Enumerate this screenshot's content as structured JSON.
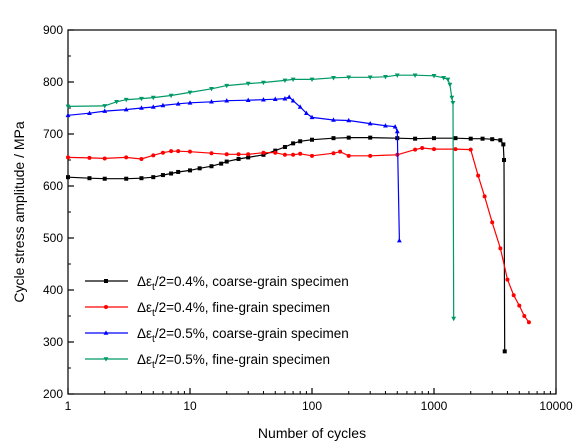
{
  "chart_data": {
    "type": "line",
    "xlabel": "Number of cycles",
    "ylabel": "Cycle stress amplitude / MPa",
    "x_scale": "log",
    "xlim": [
      1,
      10000
    ],
    "ylim": [
      200,
      900
    ],
    "x_ticks": [
      1,
      10,
      100,
      1000,
      10000
    ],
    "x_tick_labels": [
      "1",
      "10",
      "100",
      "1000",
      "10000"
    ],
    "y_ticks": [
      200,
      300,
      400,
      500,
      600,
      700,
      800,
      900
    ],
    "y_tick_labels": [
      "200",
      "300",
      "400",
      "500",
      "600",
      "700",
      "800",
      "900"
    ],
    "grid": false,
    "legend_position": "lower-left",
    "series": [
      {
        "legend_prefix": "Δε",
        "legend_sub": "t",
        "legend_suffix": "/2=0.4%, coarse-grain specimen",
        "color": "#000000",
        "marker": "square",
        "points": [
          [
            1,
            617
          ],
          [
            1.5,
            615
          ],
          [
            2,
            614
          ],
          [
            3,
            614
          ],
          [
            4,
            615
          ],
          [
            5,
            617
          ],
          [
            6,
            621
          ],
          [
            7,
            624
          ],
          [
            8,
            627
          ],
          [
            10,
            630
          ],
          [
            12,
            634
          ],
          [
            15,
            638
          ],
          [
            18,
            643
          ],
          [
            20,
            647
          ],
          [
            25,
            652
          ],
          [
            30,
            655
          ],
          [
            40,
            660
          ],
          [
            50,
            668
          ],
          [
            60,
            675
          ],
          [
            70,
            682
          ],
          [
            80,
            686
          ],
          [
            100,
            689
          ],
          [
            150,
            692
          ],
          [
            200,
            693
          ],
          [
            300,
            693
          ],
          [
            500,
            692
          ],
          [
            700,
            691
          ],
          [
            1000,
            692
          ],
          [
            1500,
            692
          ],
          [
            2000,
            691
          ],
          [
            2500,
            691
          ],
          [
            3000,
            690
          ],
          [
            3500,
            688
          ],
          [
            3700,
            680
          ],
          [
            3750,
            650
          ],
          [
            3800,
            282
          ]
        ]
      },
      {
        "legend_prefix": "Δε",
        "legend_sub": "t",
        "legend_suffix": "/2=0.4%, fine-grain specimen",
        "color": "#ff0000",
        "marker": "dot",
        "points": [
          [
            1,
            655
          ],
          [
            1.5,
            654
          ],
          [
            2,
            653
          ],
          [
            3,
            655
          ],
          [
            4,
            652
          ],
          [
            5,
            659
          ],
          [
            6,
            664
          ],
          [
            7,
            667
          ],
          [
            8,
            667
          ],
          [
            10,
            666
          ],
          [
            15,
            663
          ],
          [
            20,
            661
          ],
          [
            25,
            661
          ],
          [
            30,
            661
          ],
          [
            40,
            664
          ],
          [
            50,
            664
          ],
          [
            60,
            660
          ],
          [
            70,
            660
          ],
          [
            80,
            662
          ],
          [
            100,
            658
          ],
          [
            150,
            663
          ],
          [
            170,
            666
          ],
          [
            200,
            658
          ],
          [
            300,
            658
          ],
          [
            500,
            660
          ],
          [
            700,
            670
          ],
          [
            800,
            673
          ],
          [
            1000,
            671
          ],
          [
            1500,
            671
          ],
          [
            2000,
            670
          ],
          [
            2300,
            620
          ],
          [
            2600,
            580
          ],
          [
            3000,
            530
          ],
          [
            3500,
            480
          ],
          [
            4000,
            420
          ],
          [
            4500,
            390
          ],
          [
            5000,
            370
          ],
          [
            5500,
            350
          ],
          [
            6000,
            338
          ]
        ]
      },
      {
        "legend_prefix": "Δε",
        "legend_sub": "t",
        "legend_suffix": "/2=0.5%, coarse-grain specimen",
        "color": "#0000ff",
        "marker": "triangle",
        "points": [
          [
            1,
            736
          ],
          [
            1.5,
            740
          ],
          [
            2,
            744
          ],
          [
            3,
            747
          ],
          [
            4,
            750
          ],
          [
            5,
            752
          ],
          [
            6,
            755
          ],
          [
            8,
            758
          ],
          [
            10,
            760
          ],
          [
            15,
            762
          ],
          [
            20,
            764
          ],
          [
            30,
            765
          ],
          [
            40,
            766
          ],
          [
            50,
            767
          ],
          [
            60,
            768
          ],
          [
            65,
            771
          ],
          [
            70,
            764
          ],
          [
            80,
            752
          ],
          [
            90,
            740
          ],
          [
            100,
            732
          ],
          [
            150,
            727
          ],
          [
            200,
            726
          ],
          [
            300,
            720
          ],
          [
            400,
            716
          ],
          [
            480,
            714
          ],
          [
            500,
            705
          ],
          [
            520,
            495
          ]
        ]
      },
      {
        "legend_prefix": "Δε",
        "legend_sub": "t",
        "legend_suffix": "/2=0.5%, fine-grain specimen",
        "color": "#009966",
        "marker": "triangle-down",
        "points": [
          [
            1,
            753
          ],
          [
            2,
            754
          ],
          [
            2.5,
            762
          ],
          [
            3,
            766
          ],
          [
            4,
            768
          ],
          [
            5,
            770
          ],
          [
            7,
            774
          ],
          [
            10,
            780
          ],
          [
            15,
            787
          ],
          [
            20,
            793
          ],
          [
            30,
            797
          ],
          [
            40,
            799
          ],
          [
            60,
            803
          ],
          [
            70,
            805
          ],
          [
            100,
            805
          ],
          [
            150,
            808
          ],
          [
            200,
            809
          ],
          [
            300,
            809
          ],
          [
            400,
            810
          ],
          [
            500,
            813
          ],
          [
            700,
            813
          ],
          [
            1000,
            812
          ],
          [
            1200,
            808
          ],
          [
            1300,
            805
          ],
          [
            1350,
            795
          ],
          [
            1400,
            770
          ],
          [
            1430,
            760
          ],
          [
            1450,
            345
          ]
        ]
      }
    ]
  }
}
